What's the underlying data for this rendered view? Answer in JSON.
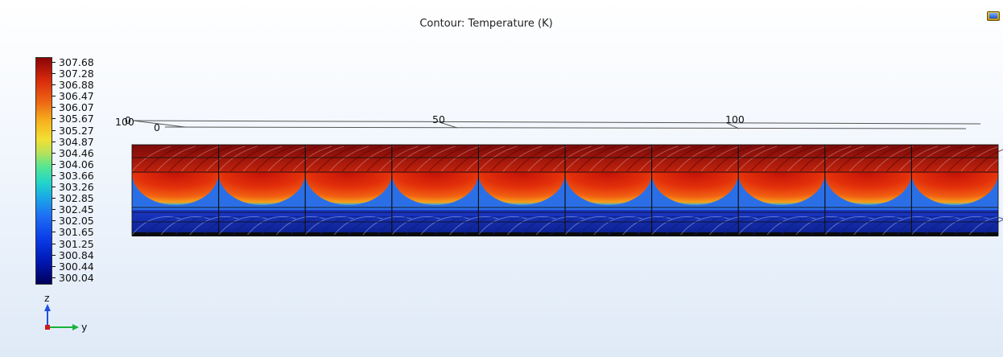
{
  "title": "Contour: Temperature (K)",
  "colorbar": {
    "labels": [
      "307.68",
      "307.28",
      "306.88",
      "306.47",
      "306.07",
      "305.67",
      "305.27",
      "304.87",
      "304.46",
      "304.06",
      "303.66",
      "303.26",
      "302.85",
      "302.45",
      "302.05",
      "301.65",
      "301.25",
      "300.84",
      "300.44",
      "300.04"
    ],
    "colors": [
      "#8a0406",
      "#d92a0c",
      "#ef6a14",
      "#f7b21e",
      "#f2e032",
      "#b9e25a",
      "#57e690",
      "#22d6c8",
      "#19a7e8",
      "#1e6ef5",
      "#0a3ce8",
      "#00005a"
    ]
  },
  "axis_ticks": {
    "left_0": "0",
    "left_100": "100",
    "top_0": "0",
    "y_50": "50",
    "y_100": "100"
  },
  "triad": {
    "z": "z",
    "y": "y"
  },
  "icons": {
    "corner": "window-toggle-icon"
  }
}
